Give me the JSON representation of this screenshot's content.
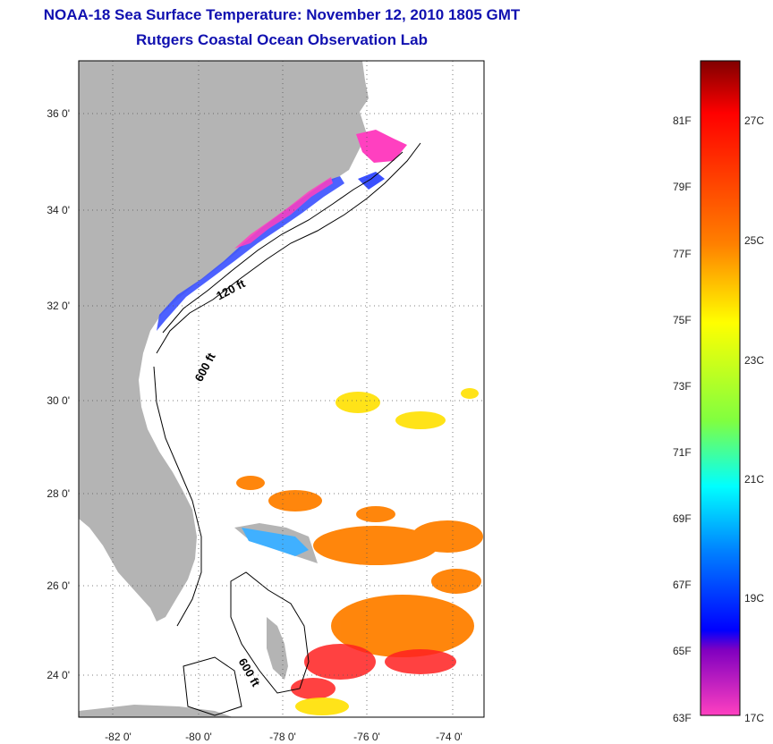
{
  "header": {
    "title": "NOAA-18 Sea Surface Temperature:  November 12, 2010 1805 GMT",
    "subtitle": "Rutgers Coastal Ocean Observation Lab"
  },
  "map": {
    "lat_ticks": [
      "36 0'",
      "34 0'",
      "32 0'",
      "30 0'",
      "28 0'",
      "26 0'",
      "24 0'"
    ],
    "lon_ticks": [
      "-82 0'",
      "-80 0'",
      "-78 0'",
      "-76 0'",
      "-74 0'"
    ],
    "contour_labels": [
      "120 ft",
      "600 ft",
      "600 ft"
    ],
    "land_color": "#b4b4b4"
  },
  "colorbar": {
    "f_labels": [
      "81F",
      "79F",
      "77F",
      "75F",
      "73F",
      "71F",
      "69F",
      "67F",
      "65F",
      "63F"
    ],
    "c_labels": [
      "27C",
      "25C",
      "23C",
      "21C",
      "19C",
      "17C"
    ],
    "colors": [
      "#800000",
      "#ff0000",
      "#ff8000",
      "#ffff00",
      "#80ff00",
      "#00ffff",
      "#0080ff",
      "#0000ff",
      "#8000c0",
      "#ff40c0"
    ]
  }
}
